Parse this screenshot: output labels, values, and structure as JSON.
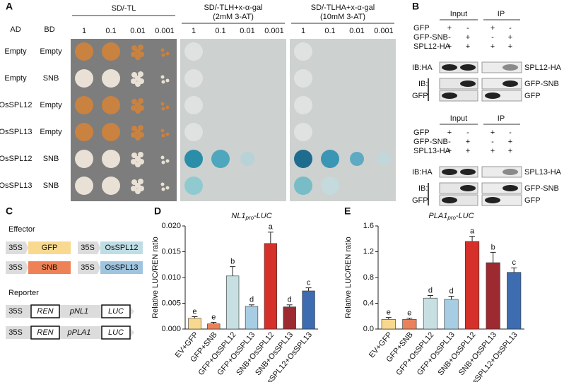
{
  "panel_a": {
    "label": "A",
    "ad_header": "AD",
    "bd_header": "BD",
    "groups": [
      {
        "title": "SD/-TL"
      },
      {
        "title": "SD/-TLH+x-α-gal",
        "subtitle": "(2mM 3-AT)"
      },
      {
        "title": "SD/-TLHA+x-α-gal",
        "subtitle": "(10mM 3-AT)"
      }
    ],
    "dilutions": [
      "1",
      "0.1",
      "0.01",
      "0.001"
    ],
    "rows": [
      [
        "Empty",
        "Empty"
      ],
      [
        "Empty",
        "SNB"
      ],
      [
        "OsSPL12",
        "Empty"
      ],
      [
        "OsSPL13",
        "Empty"
      ],
      [
        "OsSPL12",
        "SNB"
      ],
      [
        "OsSPL13",
        "SNB"
      ]
    ]
  },
  "panel_b": {
    "label": "B",
    "blocks": [
      {
        "input": "Input",
        "ip": "IP",
        "rows": [
          {
            "name": "GFP",
            "signs": [
              "+",
              "-",
              "+",
              "-"
            ]
          },
          {
            "name": "GFP-SNB",
            "signs": [
              "-",
              "+",
              "-",
              "+"
            ]
          },
          {
            "name": "SPL12-HA",
            "signs": [
              "+",
              "+",
              "+",
              "+"
            ]
          }
        ],
        "ib_ha": "IB:HA",
        "ib": "IB:",
        "ib_gfp": "GFP",
        "bands": [
          "SPL12-HA",
          "GFP-SNB",
          "GFP"
        ]
      },
      {
        "input": "Input",
        "ip": "IP",
        "rows": [
          {
            "name": "GFP",
            "signs": [
              "+",
              "-",
              "+",
              "-"
            ]
          },
          {
            "name": "GFP-SNB",
            "signs": [
              "-",
              "+",
              "-",
              "+"
            ]
          },
          {
            "name": "SPL13-HA",
            "signs": [
              "+",
              "+",
              "+",
              "+"
            ]
          }
        ],
        "ib_ha": "IB:HA",
        "ib": "IB:",
        "ib_gfp": "GFP",
        "bands": [
          "SPL13-HA",
          "GFP-SNB",
          "GFP"
        ]
      }
    ]
  },
  "panel_c": {
    "label": "C",
    "effector": "Effector",
    "reporter": "Reporter",
    "effector_rows": [
      [
        "35S",
        "GFP",
        "35S",
        "OsSPL12"
      ],
      [
        "35S",
        "SNB",
        "35S",
        "OsSPL13"
      ]
    ],
    "reporter_rows": [
      [
        "35S",
        "REN",
        "pNL1",
        "LUC"
      ],
      [
        "35S",
        "REN",
        "pPLA1",
        "LUC"
      ]
    ]
  },
  "chart_data": [
    {
      "type": "bar",
      "panel_label": "D",
      "title": [
        "NL1",
        "pro",
        "-LUC"
      ],
      "y_label": "Relative LUC/REN ratio",
      "categories": [
        "EV+GFP",
        "GFP+SNB",
        "GFP+OsSPL12",
        "GFP+OsSPL13",
        "SNB+OsSPL12",
        "SNB+OsSPL13",
        "OsSPL12+OsSPL13"
      ],
      "values": [
        0.0021,
        0.001,
        0.0103,
        0.0044,
        0.0166,
        0.0043,
        0.0074
      ],
      "errors": [
        0.0003,
        0.0003,
        0.0018,
        0.0003,
        0.0022,
        0.0004,
        0.0006
      ],
      "letters": [
        "e",
        "e",
        "b",
        "d",
        "a",
        "d",
        "c"
      ],
      "colors": [
        "#f7d88e",
        "#e9825a",
        "#c8dfe2",
        "#a6cde3",
        "#d6302a",
        "#9d2a30",
        "#3d6cb0"
      ],
      "ylim": [
        0,
        0.02
      ],
      "yticks": [
        {
          "value": 0,
          "label": "0.000"
        },
        {
          "value": 0.005,
          "label": "0.005"
        },
        {
          "value": 0.01,
          "label": "0.010"
        },
        {
          "value": 0.015,
          "label": "0.015"
        },
        {
          "value": 0.02,
          "label": "0.020"
        }
      ]
    },
    {
      "type": "bar",
      "panel_label": "E",
      "title": [
        "PLA1",
        "pro",
        "-LUC"
      ],
      "y_label": "Relative LUC/REN ratio",
      "categories": [
        "EV+GFP",
        "GFP+SNB",
        "GFP+OsSPL12",
        "GFP+OsSPL13",
        "SNB+OsSPL12",
        "SNB+OsSPL13",
        "OsSPL12+OsSPL13"
      ],
      "values": [
        0.15,
        0.15,
        0.48,
        0.46,
        1.36,
        1.03,
        0.88
      ],
      "errors": [
        0.03,
        0.02,
        0.04,
        0.05,
        0.08,
        0.16,
        0.07
      ],
      "letters": [
        "e",
        "e",
        "d",
        "d",
        "a",
        "b",
        "c"
      ],
      "colors": [
        "#f7d88e",
        "#e9825a",
        "#c8dfe2",
        "#a6cde3",
        "#d6302a",
        "#9d2a30",
        "#3d6cb0"
      ],
      "ylim": [
        0,
        1.6
      ],
      "yticks": [
        {
          "value": 0,
          "label": "0.0"
        },
        {
          "value": 0.4,
          "label": "0.4"
        },
        {
          "value": 0.8,
          "label": "0.8"
        },
        {
          "value": 1.2,
          "label": "1.2"
        },
        {
          "value": 1.6,
          "label": "1.6"
        }
      ]
    }
  ]
}
